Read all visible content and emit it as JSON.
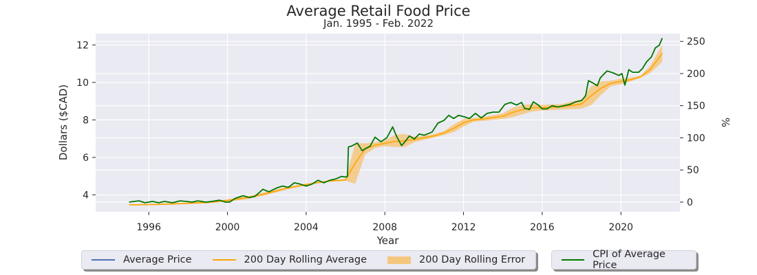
{
  "chart_data": {
    "type": "line",
    "title": "Average Retail Food Price",
    "subtitle": "Jan. 1995 - Feb. 2022",
    "xlabel": "Year",
    "ylabel": "Dollars ($CAD)",
    "y2label": "%",
    "xlim": [
      1993.3,
      2023.0
    ],
    "ylim": [
      3.1,
      12.6
    ],
    "y2lim": [
      -15,
      262
    ],
    "xticks": [
      1996,
      2000,
      2004,
      2008,
      2012,
      2016,
      2020
    ],
    "yticks": [
      4,
      6,
      8,
      10,
      12
    ],
    "y2ticks": [
      0,
      50,
      100,
      150,
      200,
      250
    ],
    "grid": true,
    "legend_position": "bottom",
    "colors": {
      "background": "#eaeaf2",
      "grid": "#ffffff",
      "average_price": "#4c72b0",
      "rolling_average": "#ffa500",
      "rolling_error": "#f5c77e",
      "cpi": "#007700"
    },
    "legend": [
      {
        "name": "Average Price",
        "swatch": "line",
        "color": "#4c72b0"
      },
      {
        "name": "200 Day Rolling Average",
        "swatch": "line",
        "color": "#ffa500"
      },
      {
        "name": "200 Day Rolling Error",
        "swatch": "fill",
        "color": "#f5c77e"
      }
    ],
    "legend2": [
      {
        "name": "CPI of Average Price",
        "swatch": "line",
        "color": "#007700"
      }
    ],
    "series": [
      {
        "name": "CPI of Average Price",
        "axis": "right",
        "x": [
          1995.0,
          1995.5,
          1995.8,
          1996.2,
          1996.5,
          1996.8,
          1997.2,
          1997.6,
          1997.9,
          1998.2,
          1998.5,
          1998.9,
          1999.2,
          1999.6,
          1999.9,
          2000.1,
          2000.4,
          2000.8,
          2001.1,
          2001.4,
          2001.8,
          2002.1,
          2002.5,
          2002.8,
          2003.1,
          2003.4,
          2003.7,
          2004.0,
          2004.3,
          2004.6,
          2004.9,
          2005.2,
          2005.5,
          2005.8,
          2006.0,
          2006.1,
          2006.15,
          2006.3,
          2006.6,
          2006.85,
          2007.0,
          2007.25,
          2007.5,
          2007.8,
          2008.1,
          2008.4,
          2008.6,
          2008.85,
          2009.0,
          2009.25,
          2009.5,
          2009.75,
          2010.0,
          2010.4,
          2010.7,
          2011.0,
          2011.25,
          2011.5,
          2011.75,
          2012.0,
          2012.3,
          2012.6,
          2012.9,
          2013.2,
          2013.5,
          2013.8,
          2014.1,
          2014.4,
          2014.7,
          2014.95,
          2015.1,
          2015.35,
          2015.55,
          2015.8,
          2016.0,
          2016.25,
          2016.5,
          2016.8,
          2017.1,
          2017.4,
          2017.7,
          2018.0,
          2018.2,
          2018.35,
          2018.6,
          2018.8,
          2018.95,
          2019.1,
          2019.3,
          2019.6,
          2019.9,
          2020.05,
          2020.2,
          2020.4,
          2020.6,
          2020.9,
          2021.1,
          2021.3,
          2021.55,
          2021.75,
          2021.95,
          2022.1
        ],
        "y": [
          0,
          2,
          -1,
          1,
          -1,
          1,
          -1,
          2,
          1,
          0,
          2,
          0,
          1,
          3,
          0,
          0,
          6,
          10,
          7,
          9,
          20,
          16,
          22,
          25,
          23,
          30,
          28,
          25,
          28,
          34,
          30,
          34,
          36,
          40,
          39,
          40,
          86,
          87,
          92,
          80,
          83,
          87,
          101,
          94,
          100,
          117,
          102,
          88,
          93,
          103,
          98,
          106,
          104,
          109,
          123,
          127,
          135,
          130,
          135,
          133,
          130,
          138,
          131,
          138,
          140,
          140,
          152,
          155,
          151,
          155,
          146,
          144,
          156,
          151,
          145,
          145,
          150,
          148,
          150,
          152,
          156,
          158,
          165,
          189,
          185,
          181,
          193,
          198,
          204,
          201,
          197,
          200,
          182,
          206,
          202,
          202,
          208,
          218,
          226,
          240,
          244,
          255
        ]
      },
      {
        "name": "200 Day Rolling Average",
        "axis": "left",
        "x": [
          1995.0,
          1996.0,
          1997.0,
          1998.0,
          1999.0,
          2000.0,
          2001.0,
          2002.0,
          2003.0,
          2004.0,
          2005.0,
          2006.0,
          2006.5,
          2007.0,
          2007.5,
          2008.0,
          2008.5,
          2009.0,
          2009.5,
          2010.0,
          2010.5,
          2011.0,
          2011.5,
          2012.0,
          2012.5,
          2013.0,
          2014.0,
          2014.5,
          2015.0,
          2015.5,
          2016.0,
          2017.0,
          2018.0,
          2018.5,
          2019.0,
          2019.5,
          2020.0,
          2020.5,
          2021.0,
          2021.5,
          2022.1
        ],
        "y": [
          3.47,
          3.48,
          3.51,
          3.55,
          3.6,
          3.7,
          3.85,
          4.08,
          4.35,
          4.55,
          4.72,
          4.8,
          5.7,
          6.45,
          6.65,
          6.75,
          6.85,
          6.88,
          6.95,
          7.05,
          7.15,
          7.3,
          7.55,
          7.85,
          8.0,
          8.05,
          8.2,
          8.4,
          8.55,
          8.65,
          8.65,
          8.7,
          8.85,
          9.3,
          9.7,
          9.95,
          10.05,
          10.15,
          10.3,
          10.7,
          11.55
        ]
      }
    ],
    "rolling_error_band": {
      "name": "200 Day Rolling Error",
      "axis": "left",
      "x": [
        1995.0,
        1996.0,
        1997.0,
        1998.0,
        1999.0,
        2000.0,
        2001.0,
        2002.0,
        2003.0,
        2004.0,
        2005.0,
        2006.0,
        2006.5,
        2007.0,
        2007.5,
        2008.0,
        2008.5,
        2009.0,
        2009.5,
        2010.0,
        2010.5,
        2011.0,
        2011.5,
        2012.0,
        2012.5,
        2013.0,
        2014.0,
        2014.5,
        2015.0,
        2015.5,
        2016.0,
        2017.0,
        2018.0,
        2018.5,
        2019.0,
        2019.5,
        2020.0,
        2020.5,
        2021.0,
        2021.5,
        2022.1
      ],
      "upper": [
        3.5,
        3.51,
        3.55,
        3.59,
        3.65,
        3.76,
        3.93,
        4.16,
        4.42,
        4.6,
        4.75,
        4.85,
        6.75,
        6.75,
        6.8,
        6.9,
        7.2,
        7.25,
        7.1,
        7.15,
        7.25,
        7.4,
        7.75,
        8.05,
        8.1,
        8.15,
        8.35,
        8.65,
        8.8,
        8.85,
        8.8,
        8.85,
        9.1,
        9.8,
        10.05,
        10.1,
        10.2,
        10.25,
        10.35,
        10.9,
        12.0
      ],
      "lower": [
        3.44,
        3.45,
        3.47,
        3.51,
        3.55,
        3.64,
        3.77,
        4.0,
        4.28,
        4.5,
        4.69,
        4.75,
        4.6,
        6.15,
        6.5,
        6.6,
        6.55,
        6.55,
        6.8,
        6.95,
        7.05,
        7.2,
        7.35,
        7.65,
        7.9,
        7.95,
        8.05,
        8.15,
        8.3,
        8.45,
        8.5,
        8.55,
        8.6,
        8.8,
        9.35,
        9.8,
        9.9,
        10.05,
        10.25,
        10.5,
        11.1
      ]
    }
  }
}
